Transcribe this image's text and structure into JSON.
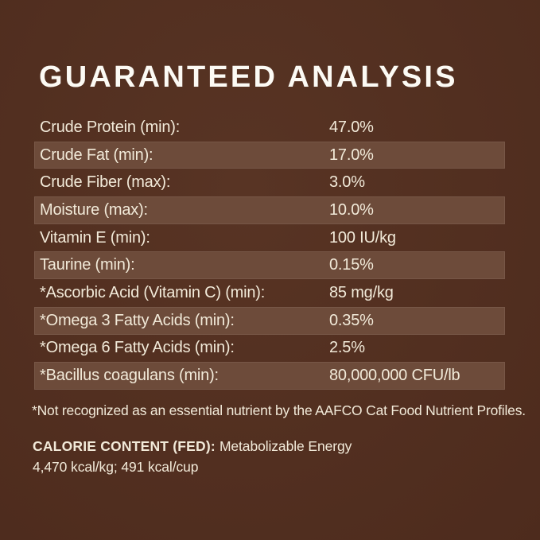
{
  "colors": {
    "background": "#532F20",
    "row_stripe": "#6D4B3A",
    "body_text": "#F2EAD9",
    "title_text": "#FCFAF4"
  },
  "title": "GUARANTEED ANALYSIS",
  "table": {
    "rows": [
      {
        "label": "Crude Protein (min):",
        "value": "47.0%"
      },
      {
        "label": "Crude Fat (min):",
        "value": "17.0%"
      },
      {
        "label": "Crude Fiber (max):",
        "value": "3.0%"
      },
      {
        "label": "Moisture (max):",
        "value": "10.0%"
      },
      {
        "label": "Vitamin E (min):",
        "value": "100 IU/kg"
      },
      {
        "label": "Taurine (min):",
        "value": "0.15%"
      },
      {
        "label": "*Ascorbic Acid (Vitamin C) (min):",
        "value": "85 mg/kg"
      },
      {
        "label": "*Omega 3 Fatty Acids (min):",
        "value": "0.35%"
      },
      {
        "label": "*Omega 6 Fatty Acids (min):",
        "value": "2.5%"
      },
      {
        "label": "*Bacillus coagulans (min):",
        "value": "80,000,000 CFU/lb"
      }
    ]
  },
  "footnote": "*Not recognized as an essential nutrient by the AAFCO Cat Food Nutrient Profiles.",
  "calorie_content": {
    "heading": "CALORIE CONTENT (FED):",
    "description": "Metabolizable Energy",
    "values_line": "4,470 kcal/kg; 491 kcal/cup"
  }
}
